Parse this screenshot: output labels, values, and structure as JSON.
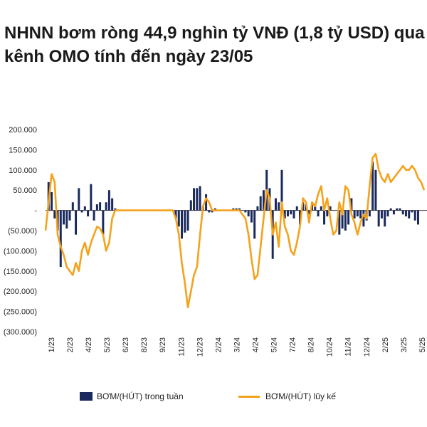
{
  "chart_data": {
    "type": "bar+line",
    "title": "NHNN bơm ròng 44,9 nghìn tỷ VNĐ (1,8 tỷ USD) qua kênh OMO tính đến ngày 23/05",
    "y_ticks": [
      "200.000",
      "150.000",
      "100.000",
      "50.000",
      "-",
      "(50.000)",
      "(100.000)",
      "(150.000)",
      "(200.000)",
      "(250.000)",
      "(300.000)"
    ],
    "ylim": [
      -300000,
      200000
    ],
    "x_ticks": [
      "1/23",
      "2/23",
      "4/23",
      "5/23",
      "6/23",
      "8/23",
      "9/23",
      "11/23",
      "12/23",
      "2/24",
      "3/24",
      "4/24",
      "5/24",
      "7/24",
      "8/24",
      "10/24",
      "11/24",
      "12/24",
      "2/25",
      "3/25",
      "5/25"
    ],
    "xlim": [
      0,
      125
    ],
    "colors": {
      "bars": "#1b2a5e",
      "line": "#f5a21b"
    },
    "series": [
      {
        "name": "BƠM/(HÚT) trong tuần",
        "type": "bar",
        "values": [
          [
            1,
            70000
          ],
          [
            2,
            45000
          ],
          [
            3,
            -20000
          ],
          [
            4,
            -50000
          ],
          [
            5,
            -140000
          ],
          [
            6,
            -35000
          ],
          [
            7,
            -45000
          ],
          [
            8,
            -25000
          ],
          [
            9,
            20000
          ],
          [
            10,
            -60000
          ],
          [
            11,
            55000
          ],
          [
            12,
            -5000
          ],
          [
            13,
            10000
          ],
          [
            14,
            -15000
          ],
          [
            15,
            65000
          ],
          [
            16,
            -25000
          ],
          [
            17,
            15000
          ],
          [
            18,
            20000
          ],
          [
            19,
            -60000
          ],
          [
            20,
            20000
          ],
          [
            21,
            50000
          ],
          [
            22,
            30000
          ],
          [
            23,
            5000
          ],
          [
            43,
            -20000
          ],
          [
            44,
            -40000
          ],
          [
            45,
            -70000
          ],
          [
            46,
            -55000
          ],
          [
            47,
            -50000
          ],
          [
            48,
            25000
          ],
          [
            49,
            55000
          ],
          [
            50,
            55000
          ],
          [
            51,
            60000
          ],
          [
            52,
            10000
          ],
          [
            53,
            40000
          ],
          [
            54,
            -5000
          ],
          [
            55,
            -5000
          ],
          [
            56,
            5000
          ],
          [
            62,
            5000
          ],
          [
            63,
            5000
          ],
          [
            64,
            5000
          ],
          [
            66,
            -5000
          ],
          [
            67,
            -15000
          ],
          [
            68,
            -30000
          ],
          [
            69,
            -70000
          ],
          [
            70,
            10000
          ],
          [
            71,
            35000
          ],
          [
            72,
            50000
          ],
          [
            73,
            100000
          ],
          [
            74,
            55000
          ],
          [
            75,
            -120000
          ],
          [
            76,
            30000
          ],
          [
            77,
            20000
          ],
          [
            78,
            100000
          ],
          [
            79,
            -20000
          ],
          [
            80,
            -15000
          ],
          [
            81,
            -10000
          ],
          [
            82,
            -20000
          ],
          [
            83,
            10000
          ],
          [
            84,
            -35000
          ],
          [
            85,
            20000
          ],
          [
            86,
            15000
          ],
          [
            87,
            -10000
          ],
          [
            88,
            20000
          ],
          [
            89,
            15000
          ],
          [
            90,
            -15000
          ],
          [
            91,
            10000
          ],
          [
            92,
            -35000
          ],
          [
            93,
            -15000
          ],
          [
            94,
            10000
          ],
          [
            97,
            -60000
          ],
          [
            98,
            -45000
          ],
          [
            99,
            -50000
          ],
          [
            100,
            -35000
          ],
          [
            101,
            30000
          ],
          [
            102,
            -20000
          ],
          [
            103,
            -15000
          ],
          [
            104,
            -20000
          ],
          [
            105,
            -40000
          ],
          [
            106,
            -25000
          ],
          [
            107,
            -15000
          ],
          [
            108,
            120000
          ],
          [
            109,
            100000
          ],
          [
            110,
            -40000
          ],
          [
            111,
            -20000
          ],
          [
            112,
            -40000
          ],
          [
            113,
            -15000
          ],
          [
            114,
            5000
          ],
          [
            115,
            -10000
          ],
          [
            116,
            5000
          ],
          [
            117,
            5000
          ],
          [
            118,
            -10000
          ],
          [
            119,
            -15000
          ],
          [
            120,
            -20000
          ],
          [
            121,
            -5000
          ],
          [
            122,
            -25000
          ],
          [
            123,
            -35000
          ]
        ]
      },
      {
        "name": "BƠM/(HÚT) lũy kế",
        "type": "line",
        "values": [
          [
            0,
            -50000
          ],
          [
            1,
            20000
          ],
          [
            2,
            90000
          ],
          [
            3,
            70000
          ],
          [
            4,
            -60000
          ],
          [
            5,
            -90000
          ],
          [
            6,
            -110000
          ],
          [
            7,
            -140000
          ],
          [
            8,
            -150000
          ],
          [
            9,
            -160000
          ],
          [
            10,
            -130000
          ],
          [
            11,
            -150000
          ],
          [
            12,
            -100000
          ],
          [
            13,
            -80000
          ],
          [
            14,
            -110000
          ],
          [
            15,
            -80000
          ],
          [
            16,
            -60000
          ],
          [
            17,
            -40000
          ],
          [
            18,
            -45000
          ],
          [
            19,
            -60000
          ],
          [
            20,
            -100000
          ],
          [
            21,
            -80000
          ],
          [
            22,
            -20000
          ],
          [
            23,
            0
          ],
          [
            24,
            0
          ],
          [
            30,
            0
          ],
          [
            36,
            0
          ],
          [
            42,
            0
          ],
          [
            43,
            -20000
          ],
          [
            44,
            -60000
          ],
          [
            45,
            -130000
          ],
          [
            46,
            -180000
          ],
          [
            47,
            -240000
          ],
          [
            48,
            -200000
          ],
          [
            49,
            -160000
          ],
          [
            50,
            -140000
          ],
          [
            51,
            -60000
          ],
          [
            52,
            10000
          ],
          [
            53,
            30000
          ],
          [
            54,
            20000
          ],
          [
            55,
            0
          ],
          [
            56,
            0
          ],
          [
            60,
            0
          ],
          [
            64,
            0
          ],
          [
            66,
            -20000
          ],
          [
            67,
            -60000
          ],
          [
            68,
            -120000
          ],
          [
            69,
            -170000
          ],
          [
            70,
            -160000
          ],
          [
            71,
            -90000
          ],
          [
            72,
            -20000
          ],
          [
            73,
            50000
          ],
          [
            74,
            30000
          ],
          [
            75,
            -60000
          ],
          [
            76,
            -30000
          ],
          [
            77,
            -90000
          ],
          [
            78,
            20000
          ],
          [
            79,
            -40000
          ],
          [
            80,
            -60000
          ],
          [
            81,
            -100000
          ],
          [
            82,
            -110000
          ],
          [
            83,
            -80000
          ],
          [
            84,
            -40000
          ],
          [
            85,
            30000
          ],
          [
            86,
            20000
          ],
          [
            87,
            -30000
          ],
          [
            88,
            20000
          ],
          [
            89,
            10000
          ],
          [
            90,
            40000
          ],
          [
            91,
            60000
          ],
          [
            92,
            0
          ],
          [
            93,
            30000
          ],
          [
            94,
            -20000
          ],
          [
            95,
            -60000
          ],
          [
            96,
            -50000
          ],
          [
            97,
            20000
          ],
          [
            98,
            -10000
          ],
          [
            99,
            60000
          ],
          [
            100,
            50000
          ],
          [
            101,
            -10000
          ],
          [
            102,
            -30000
          ],
          [
            103,
            -60000
          ],
          [
            104,
            -30000
          ],
          [
            105,
            -10000
          ],
          [
            106,
            -20000
          ],
          [
            107,
            60000
          ],
          [
            108,
            130000
          ],
          [
            109,
            140000
          ],
          [
            110,
            100000
          ],
          [
            111,
            80000
          ],
          [
            112,
            70000
          ],
          [
            113,
            90000
          ],
          [
            114,
            70000
          ],
          [
            115,
            80000
          ],
          [
            116,
            90000
          ],
          [
            117,
            100000
          ],
          [
            118,
            110000
          ],
          [
            119,
            100000
          ],
          [
            120,
            100000
          ],
          [
            121,
            110000
          ],
          [
            122,
            100000
          ],
          [
            123,
            80000
          ],
          [
            124,
            70000
          ],
          [
            125,
            50000
          ]
        ]
      }
    ]
  }
}
